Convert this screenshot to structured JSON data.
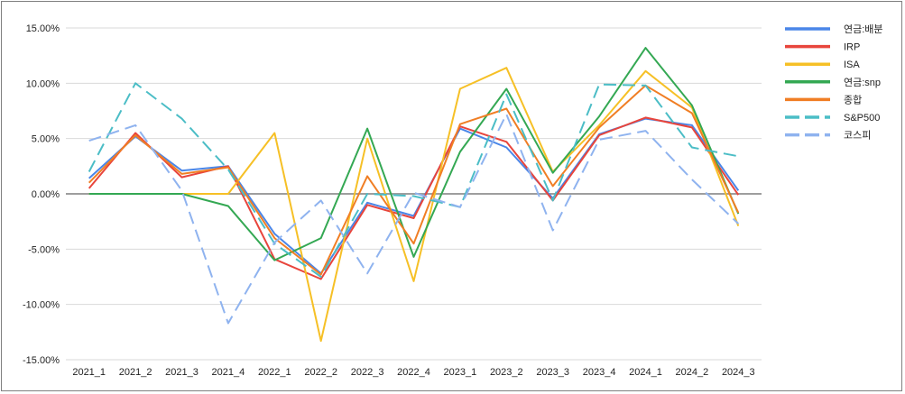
{
  "chart_data": {
    "type": "line",
    "categories": [
      "2021_1",
      "2021_2",
      "2021_3",
      "2021_4",
      "2022_1",
      "2022_2",
      "2022_3",
      "2022_4",
      "2023_1",
      "2023_2",
      "2023_3",
      "2023_4",
      "2024_1",
      "2024_2",
      "2024_3"
    ],
    "ylim": [
      -15,
      15
    ],
    "y_ticks": [
      15,
      10,
      5,
      0,
      -5,
      -10,
      -15
    ],
    "y_tick_labels": [
      "15.00%",
      "10.00%",
      "5.00%",
      "0.00%",
      "-5.00%",
      "-10.00%",
      "-15.00%"
    ],
    "grid": true,
    "legend_position": "right",
    "series": [
      {
        "name": "연금:배분",
        "color": "#4a86e8",
        "dash": false,
        "values": [
          1.4,
          5.2,
          2.1,
          2.5,
          -3.6,
          -7.2,
          -0.8,
          -2.0,
          5.9,
          4.2,
          -0.4,
          5.4,
          6.8,
          6.2,
          0.3
        ]
      },
      {
        "name": "IRP",
        "color": "#e8453c",
        "dash": false,
        "values": [
          0.5,
          5.5,
          1.5,
          2.5,
          -5.9,
          -7.7,
          -1.0,
          -2.2,
          6.1,
          4.7,
          -0.6,
          5.3,
          6.9,
          6.0,
          -0.1
        ]
      },
      {
        "name": "ISA",
        "color": "#f6c026",
        "dash": false,
        "values": [
          0.0,
          0.0,
          0.0,
          0.0,
          5.5,
          -13.3,
          5.0,
          -7.9,
          9.5,
          11.4,
          2.0,
          6.2,
          11.1,
          7.8,
          -2.9
        ]
      },
      {
        "name": "연금:snp",
        "color": "#34a853",
        "dash": false,
        "values": [
          0.0,
          0.0,
          0.0,
          -1.1,
          -6.0,
          -4.0,
          5.9,
          -5.7,
          3.8,
          9.5,
          1.9,
          7.0,
          13.2,
          8.0,
          -1.8
        ]
      },
      {
        "name": "종합",
        "color": "#f07e24",
        "dash": false,
        "values": [
          1.0,
          5.3,
          1.8,
          2.4,
          -4.0,
          -7.3,
          1.6,
          -4.5,
          6.3,
          7.7,
          0.7,
          6.0,
          9.8,
          7.3,
          -1.7
        ]
      },
      {
        "name": "S&P500",
        "color": "#4bbdc6",
        "dash": true,
        "values": [
          2.0,
          10.0,
          6.8,
          2.2,
          -4.5,
          -7.5,
          0.0,
          -0.2,
          -1.2,
          9.0,
          -0.6,
          9.9,
          9.8,
          4.2,
          3.4
        ]
      },
      {
        "name": "코스피",
        "color": "#8fb3ef",
        "dash": true,
        "values": [
          4.8,
          6.2,
          0.3,
          -11.7,
          -4.4,
          -0.6,
          -7.2,
          0.1,
          -1.2,
          7.2,
          -3.3,
          4.9,
          5.7,
          1.3,
          -2.7
        ]
      }
    ]
  }
}
